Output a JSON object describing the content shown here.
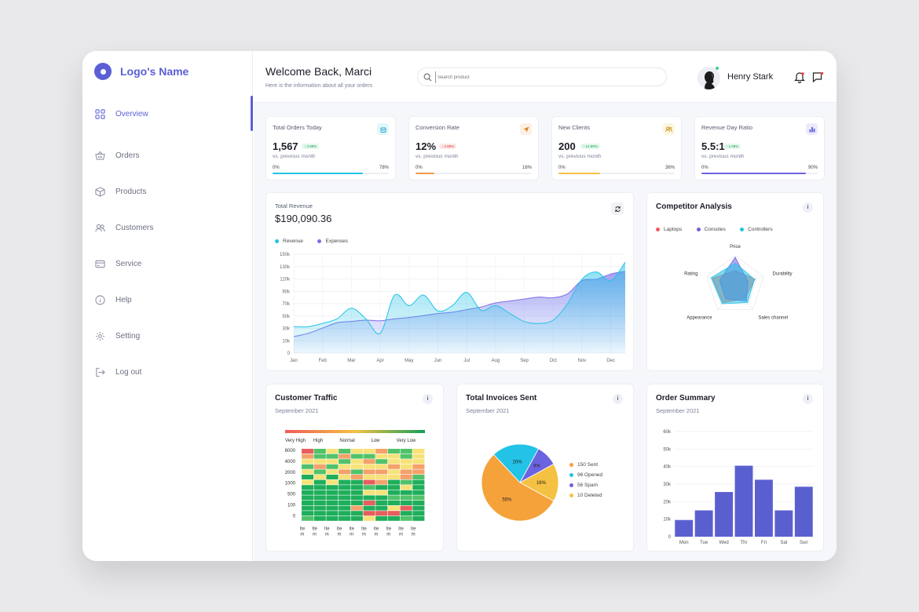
{
  "brand": {
    "name": "Logo's Name",
    "color": "#5b5fd6"
  },
  "nav": [
    {
      "label": "Overview",
      "icon": "grid-icon",
      "active": true
    },
    {
      "label": "Orders",
      "icon": "basket-icon"
    },
    {
      "label": "Products",
      "icon": "box-icon"
    },
    {
      "label": "Customers",
      "icon": "users-icon"
    },
    {
      "label": "Service",
      "icon": "card-icon"
    },
    {
      "label": "Help",
      "icon": "info-icon"
    },
    {
      "label": "Setting",
      "icon": "gear-icon"
    },
    {
      "label": "Log out",
      "icon": "logout-icon"
    }
  ],
  "header": {
    "title": "Welcome Back, Marci",
    "subtitle": "Here is the information about all your orders",
    "search_placeholder": "Search product",
    "user_name": "Henry Stark"
  },
  "stats": [
    {
      "title": "Total Orders Today",
      "value": "1,567",
      "change": "↑ 2.89%",
      "change_type": "up",
      "vs": "vs. previous month",
      "min": "0%",
      "max": "78%",
      "progress": 78,
      "color": "#22c3e6",
      "icon": "bag-icon",
      "icon_bg": "#e2f7fb"
    },
    {
      "title": "Conversion Rate",
      "value": "12%",
      "change": "↓ 2.89%",
      "change_type": "down",
      "vs": "vs. previous month",
      "min": "0%",
      "max": "16%",
      "progress": 16,
      "color": "#f2994a",
      "icon": "send-icon",
      "icon_bg": "#fdf0e3"
    },
    {
      "title": "New Clients",
      "value": "200",
      "change": "↑ 12.89%",
      "change_type": "up",
      "vs": "vs. previous month",
      "min": "0%",
      "max": "36%",
      "progress": 36,
      "color": "#f5c142",
      "icon": "people-icon",
      "icon_bg": "#fdf6e0"
    },
    {
      "title": "Revenue Day Ratio",
      "value": "5.5:1",
      "change": "↑ 1.09%",
      "change_type": "up",
      "vs": "vs. previous month",
      "min": "0%",
      "max": "90%",
      "progress": 90,
      "color": "#6c63e0",
      "icon": "bars-icon",
      "icon_bg": "#ebeafc"
    }
  ],
  "revenue": {
    "label": "Total Revenue",
    "value": "$190,090.36",
    "legend": [
      {
        "name": "Revenue",
        "color": "#22c3e6"
      },
      {
        "name": "Expenses",
        "color": "#7b6fe8"
      }
    ],
    "yticks": [
      "150k",
      "130k",
      "110k",
      "90k",
      "70k",
      "50k",
      "30k",
      "10k",
      "0"
    ],
    "months": [
      "Jan",
      "Feb",
      "Mar",
      "Apr",
      "May",
      "Jun",
      "Jul",
      "Aug",
      "Sep",
      "Oct",
      "Nov",
      "Dec"
    ]
  },
  "competitor": {
    "title": "Competitor Analysis",
    "legend": [
      {
        "name": "Laptops",
        "color": "#ef5b5b"
      },
      {
        "name": "Consoles",
        "color": "#6c63e0"
      },
      {
        "name": "Controllers",
        "color": "#22c3e6"
      }
    ],
    "axes": [
      "Price",
      "Durability",
      "Sales channel",
      "Appearance",
      "Rating"
    ]
  },
  "traffic": {
    "title": "Customer Traffic",
    "subtitle": "September 2021",
    "scale": [
      "Very High",
      "High",
      "Normal",
      "Low",
      "Very Low"
    ],
    "yticks": [
      "8000",
      "4000",
      "2000",
      "1000",
      "500",
      "100",
      "0"
    ],
    "xtick_top": "Ite",
    "xtick_bottom": "m"
  },
  "invoices": {
    "title": "Total Invoices Sent",
    "subtitle": "September 2021",
    "legend": [
      {
        "label": "150 Sent",
        "color": "#f5a23a"
      },
      {
        "label": "96 Opened",
        "color": "#22c3e6"
      },
      {
        "label": "56 Spam",
        "color": "#6c63e0"
      },
      {
        "label": "10 Deleted",
        "color": "#f5c142"
      }
    ]
  },
  "order_summary": {
    "title": "Order Summary",
    "subtitle": "September 2021"
  },
  "chart_data": [
    {
      "type": "area",
      "title": "Total Revenue",
      "categories": [
        "Jan",
        "Feb",
        "Mar",
        "Apr",
        "May",
        "Jun",
        "Jul",
        "Aug",
        "Sep",
        "Oct",
        "Nov",
        "Dec"
      ],
      "series": [
        {
          "name": "Revenue",
          "color": "#22c3e6",
          "x": [
            0,
            0.5,
            1,
            1.5,
            2,
            2.5,
            3,
            3.5,
            4,
            4.5,
            5,
            5.5,
            6,
            6.5,
            7,
            7.5,
            8,
            8.5,
            9,
            9.5,
            10,
            10.5,
            11,
            11.5
          ],
          "values": [
            40,
            40,
            45,
            52,
            68,
            52,
            30,
            88,
            72,
            88,
            64,
            72,
            92,
            65,
            72,
            60,
            48,
            45,
            50,
            75,
            112,
            123,
            110,
            138
          ]
        },
        {
          "name": "Expenses",
          "color": "#7b6fe8",
          "x": [
            0,
            0.5,
            1,
            1.5,
            2,
            2.5,
            3,
            3.5,
            4,
            4.5,
            5,
            5.5,
            6,
            6.5,
            7,
            7.5,
            8,
            8.5,
            9,
            9.5,
            10,
            10.5,
            11,
            11.5
          ],
          "values": [
            25,
            30,
            38,
            46,
            48,
            50,
            49,
            52,
            54,
            57,
            60,
            62,
            66,
            70,
            76,
            79,
            82,
            85,
            84,
            90,
            110,
            112,
            120,
            124
          ]
        }
      ],
      "ylim": [
        0,
        150
      ]
    },
    {
      "type": "radar",
      "title": "Competitor Analysis",
      "axes": [
        "Price",
        "Durability",
        "Sales channel",
        "Appearance",
        "Rating"
      ],
      "ylim": [
        0,
        100
      ],
      "series": [
        {
          "name": "Laptops",
          "color": "#ef5b5b",
          "values": [
            50,
            70,
            55,
            70,
            80
          ]
        },
        {
          "name": "Consoles",
          "color": "#6c63e0",
          "values": [
            95,
            45,
            65,
            55,
            55
          ]
        },
        {
          "name": "Controllers",
          "color": "#22c3e6",
          "values": [
            75,
            68,
            70,
            75,
            85
          ]
        }
      ]
    },
    {
      "type": "heatmap",
      "title": "Customer Traffic",
      "columns": 10,
      "rows": 14,
      "scale": [
        "Very High",
        "High",
        "Normal",
        "Low",
        "Very Low"
      ],
      "levels": [
        [
          4,
          1,
          2,
          1,
          2,
          2,
          3,
          1,
          1,
          2
        ],
        [
          3,
          1,
          1,
          3,
          1,
          1,
          2,
          2,
          1,
          2
        ],
        [
          2,
          2,
          2,
          1,
          2,
          3,
          1,
          2,
          2,
          2
        ],
        [
          1,
          3,
          1,
          2,
          2,
          2,
          2,
          3,
          2,
          3
        ],
        [
          2,
          1,
          2,
          3,
          1,
          3,
          3,
          2,
          3,
          3
        ],
        [
          0,
          2,
          0,
          2,
          3,
          2,
          2,
          2,
          3,
          1
        ],
        [
          2,
          0,
          2,
          0,
          0,
          4,
          3,
          0,
          1,
          0
        ],
        [
          0,
          0,
          0,
          0,
          0,
          1,
          0,
          0,
          2,
          0
        ],
        [
          0,
          0,
          0,
          0,
          0,
          2,
          2,
          0,
          0,
          0
        ],
        [
          0,
          0,
          0,
          0,
          0,
          0,
          0,
          1,
          1,
          1
        ],
        [
          0,
          0,
          0,
          0,
          0,
          4,
          0,
          0,
          0,
          0
        ],
        [
          0,
          0,
          0,
          0,
          3,
          0,
          0,
          2,
          4,
          0
        ],
        [
          0,
          0,
          0,
          0,
          0,
          4,
          4,
          4,
          0,
          0
        ],
        [
          1,
          0,
          0,
          0,
          0,
          2,
          0,
          0,
          1,
          0
        ]
      ]
    },
    {
      "type": "pie",
      "title": "Total Invoices Sent",
      "series": [
        {
          "name": "150 Sent",
          "value": 55,
          "label": "55%",
          "color": "#f5a23a"
        },
        {
          "name": "96 Opened",
          "value": 20,
          "label": "20%",
          "color": "#22c3e6"
        },
        {
          "name": "56 Spam",
          "value": 9,
          "label": "9%",
          "color": "#6c63e0"
        },
        {
          "name": "10 Deleted",
          "value": 16,
          "label": "16%",
          "color": "#f5c142"
        }
      ]
    },
    {
      "type": "bar",
      "title": "Order Summary",
      "categories": [
        "Mon",
        "Tue",
        "Wed",
        "Thr",
        "Fri",
        "Sat",
        "Sun"
      ],
      "values": [
        9.5,
        15,
        25.5,
        40.5,
        32.5,
        15,
        28.5
      ],
      "yticks": [
        "60k",
        "50k",
        "40k",
        "30k",
        "20k",
        "10k",
        "0"
      ],
      "ylim": [
        0,
        60
      ],
      "color": "#5a5fd0"
    }
  ]
}
